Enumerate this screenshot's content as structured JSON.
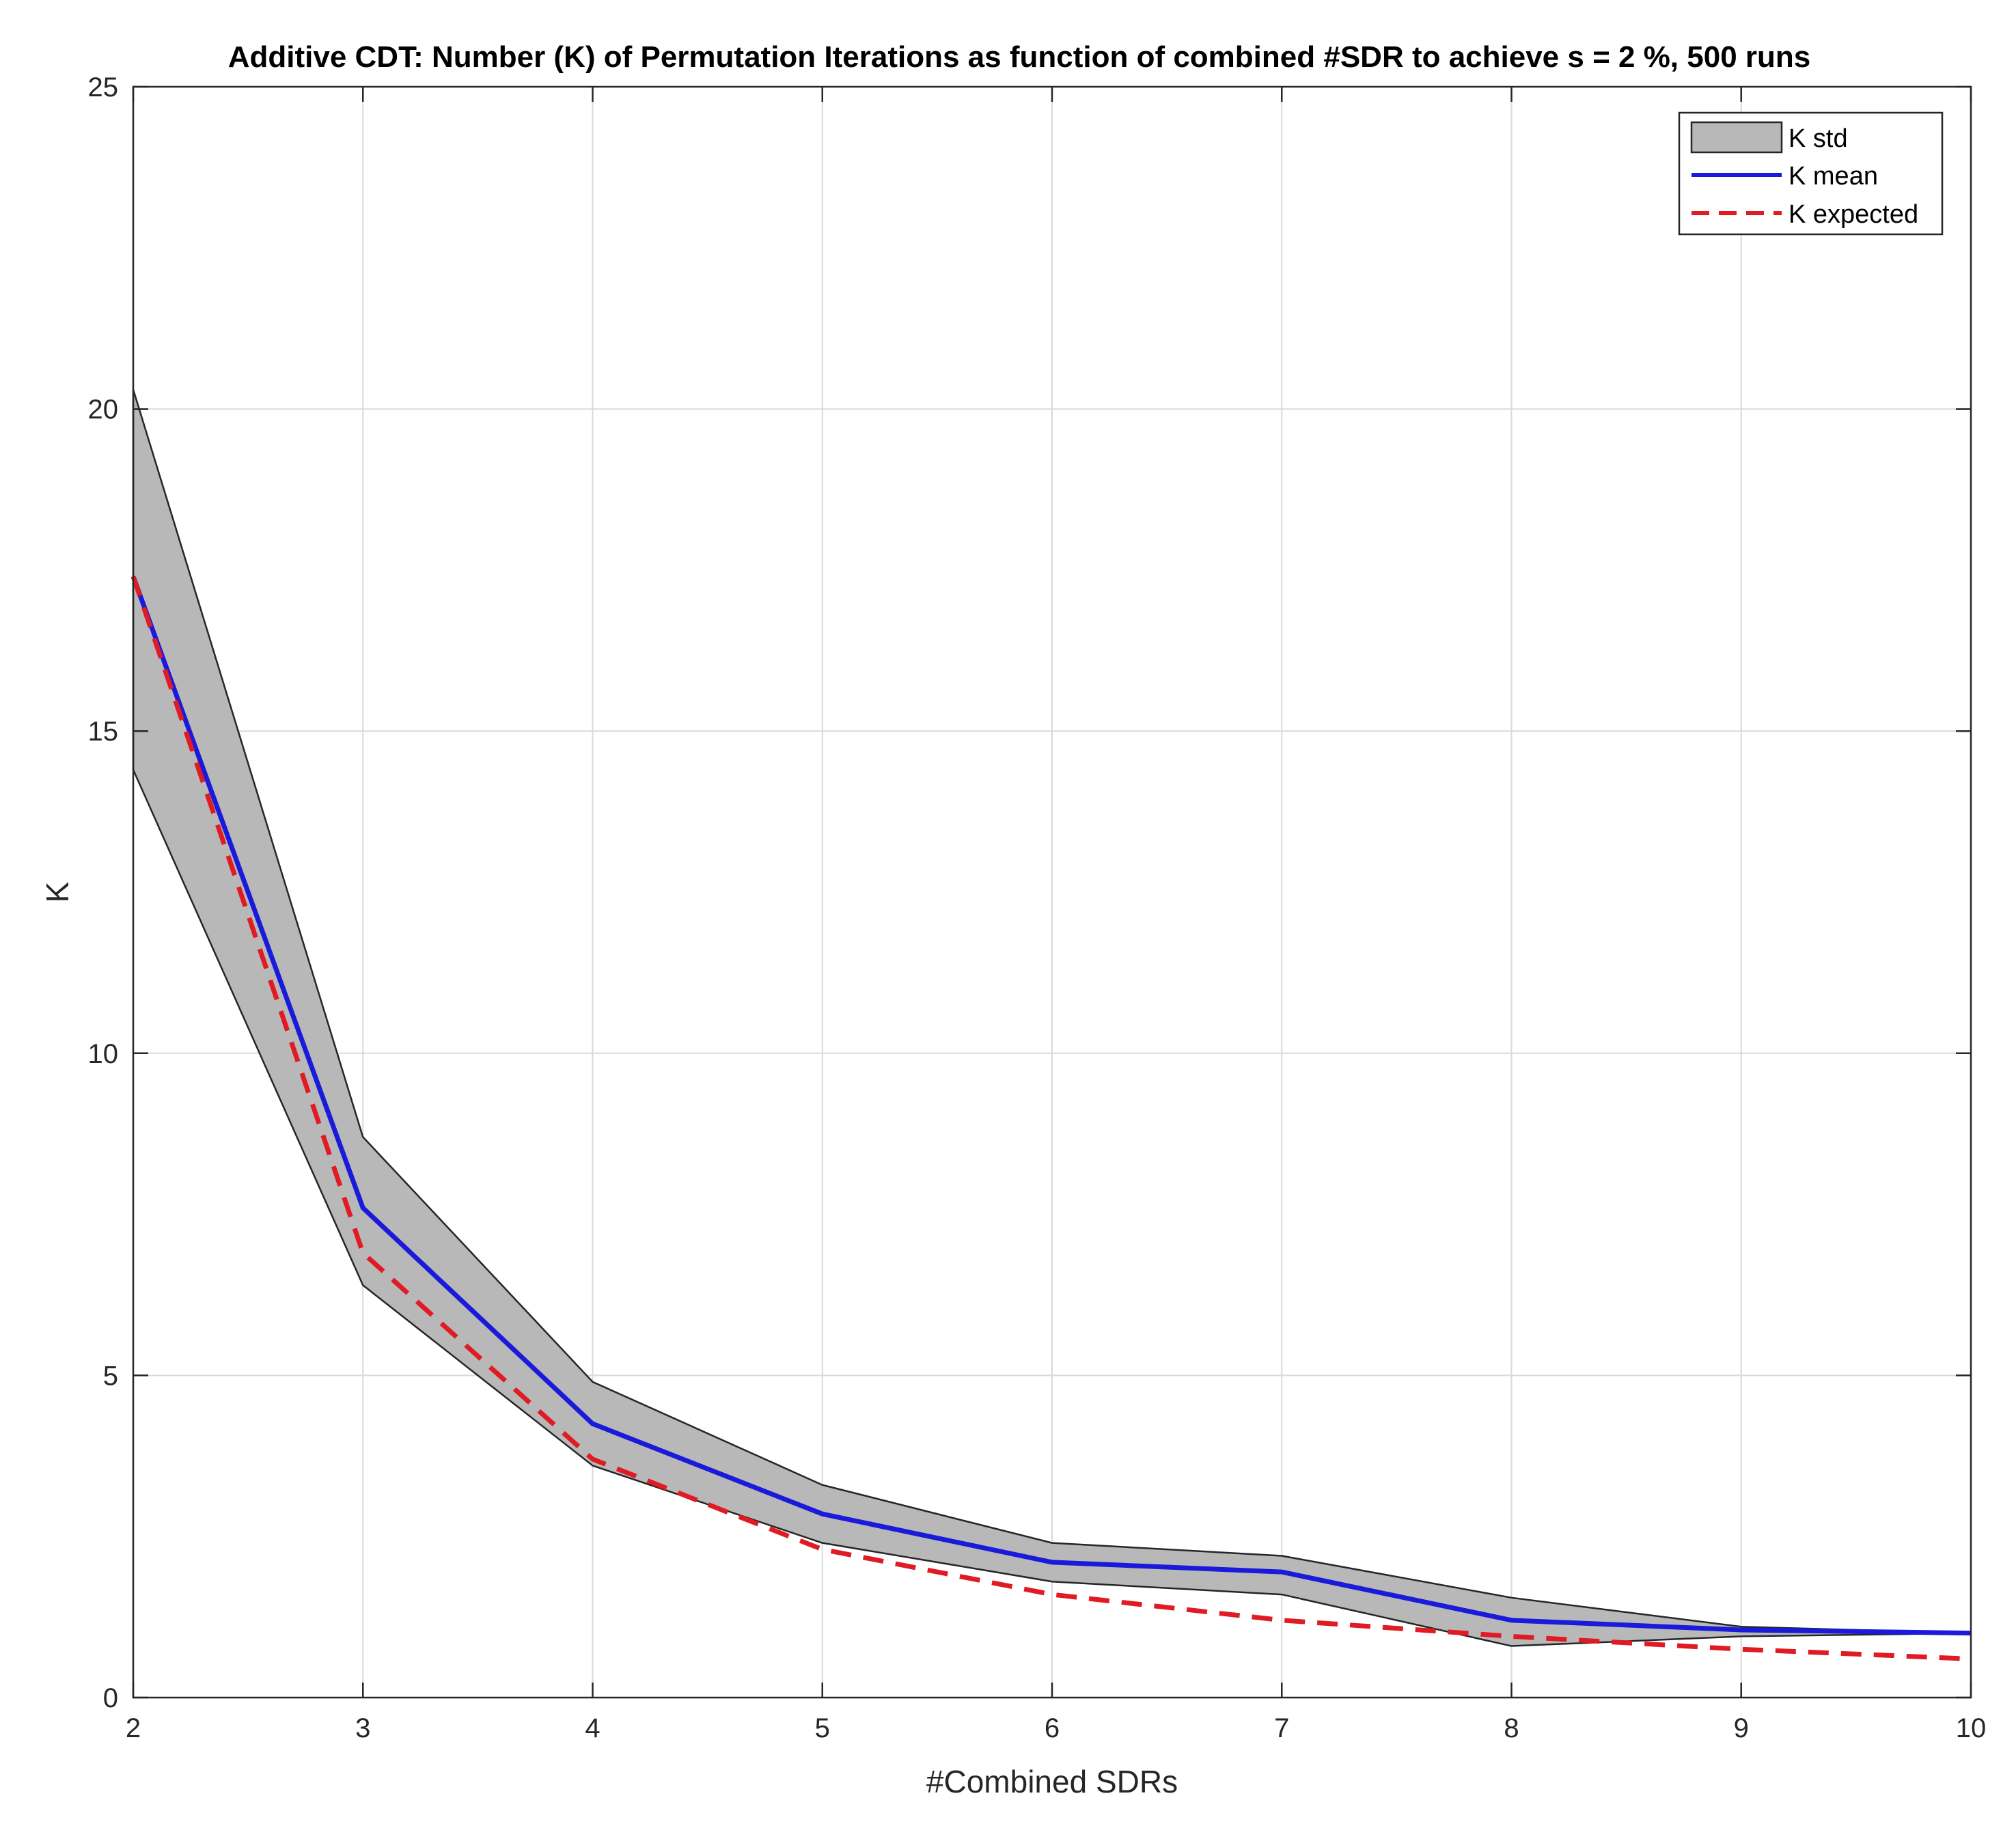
{
  "chart_data": {
    "type": "line",
    "title": "Additive CDT:  Number (K) of Permutation Iterations as function of combined #SDR to achieve s = 2 %, 500 runs",
    "xlabel": "#Combined SDRs",
    "ylabel": "K",
    "xlim": [
      2,
      10
    ],
    "ylim": [
      0,
      25
    ],
    "xticks": [
      2,
      3,
      4,
      5,
      6,
      7,
      8,
      9,
      10
    ],
    "yticks": [
      0,
      5,
      10,
      15,
      20,
      25
    ],
    "grid": true,
    "legend_position": "top-right",
    "x": [
      2,
      3,
      4,
      5,
      6,
      7,
      8,
      9,
      10
    ],
    "series": [
      {
        "name": "K std",
        "kind": "band",
        "upper": [
          20.3,
          8.7,
          4.9,
          3.3,
          2.4,
          2.2,
          1.55,
          1.1,
          1.0
        ],
        "lower": [
          14.4,
          6.4,
          3.6,
          2.4,
          1.8,
          1.6,
          0.8,
          0.95,
          1.0
        ],
        "fill": "#b8b8b8",
        "edge": "#262626"
      },
      {
        "name": "K mean",
        "kind": "line",
        "values": [
          17.4,
          7.6,
          4.25,
          2.85,
          2.1,
          1.95,
          1.2,
          1.05,
          1.0
        ],
        "color": "#1a1adb"
      },
      {
        "name": "K expected",
        "kind": "dashed",
        "values": [
          17.4,
          6.9,
          3.7,
          2.3,
          1.6,
          1.2,
          0.95,
          0.75,
          0.6
        ],
        "color": "#e01b24"
      }
    ]
  }
}
